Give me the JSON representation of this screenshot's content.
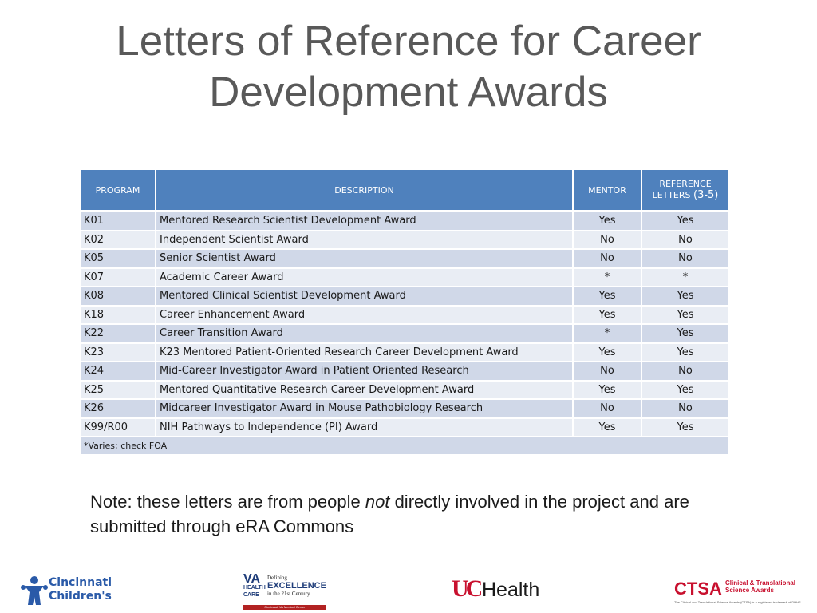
{
  "title": {
    "line1": "Letters of Reference for Career",
    "line2": "Development Awards"
  },
  "table": {
    "headers": {
      "program": "PROGRAM",
      "description": "DESCRIPTION",
      "mentor": "MENTOR",
      "reference_line1": "REFERENCE",
      "reference_line2": "LETTERS",
      "reference_range": "(3-5)"
    },
    "rows": [
      {
        "program": "K01",
        "description": "Mentored Research Scientist Development Award",
        "mentor": "Yes",
        "reference": "Yes"
      },
      {
        "program": "K02",
        "description": "Independent Scientist Award",
        "mentor": "No",
        "reference": "No"
      },
      {
        "program": "K05",
        "description": "Senior Scientist Award",
        "mentor": "No",
        "reference": "No"
      },
      {
        "program": "K07",
        "description": "Academic Career Award",
        "mentor": "*",
        "reference": "*"
      },
      {
        "program": "K08",
        "description": "Mentored Clinical Scientist Development Award",
        "mentor": "Yes",
        "reference": "Yes"
      },
      {
        "program": "K18",
        "description": "Career Enhancement Award",
        "mentor": "Yes",
        "reference": "Yes"
      },
      {
        "program": "K22",
        "description": "Career Transition Award",
        "mentor": "*",
        "reference": "Yes"
      },
      {
        "program": "K23",
        "description": "K23 Mentored Patient-Oriented Research Career Development Award",
        "mentor": "Yes",
        "reference": "Yes"
      },
      {
        "program": "K24",
        "description": "Mid-Career Investigator Award in Patient Oriented Research",
        "mentor": "No",
        "reference": "No"
      },
      {
        "program": "K25",
        "description": "Mentored Quantitative Research Career Development Award",
        "mentor": "Yes",
        "reference": "Yes"
      },
      {
        "program": "K26",
        "description": "Midcareer Investigator Award in Mouse Pathobiology Research",
        "mentor": "No",
        "reference": "No"
      },
      {
        "program": "K99/R00",
        "description": "NIH Pathways to Independence (PI) Award",
        "mentor": "Yes",
        "reference": "Yes"
      }
    ],
    "footnote": "*Varies; check FOA"
  },
  "note": {
    "before": "Note:  these letters are from people ",
    "emphasis": "not",
    "after": " directly involved in the project and are submitted through eRA Commons"
  },
  "logos": {
    "cincinnati_childrens": {
      "line1": "Cincinnati",
      "line2": "Children's"
    },
    "va": {
      "va": "VA",
      "health": "HEALTH",
      "care": "CARE",
      "defining": "Defining",
      "excellence": "EXCELLENCE",
      "century": "in the 21st Century",
      "center": "Cincinnati VA Medical Center"
    },
    "uc_health": {
      "mark": "UC",
      "text": "Health"
    },
    "ctsa": {
      "acronym": "CTSA",
      "name_line1": "Clinical & Translational",
      "name_line2": "Science Awards",
      "trademark": "The Clinical and Translational Science Awards (CTSA) is a registered trademark of DHHS."
    }
  },
  "colors": {
    "title": "#595959",
    "header_bg": "#4f81bd",
    "row_odd": "#d0d8e8",
    "row_even": "#e9edf4",
    "brand_red": "#c8102e"
  }
}
